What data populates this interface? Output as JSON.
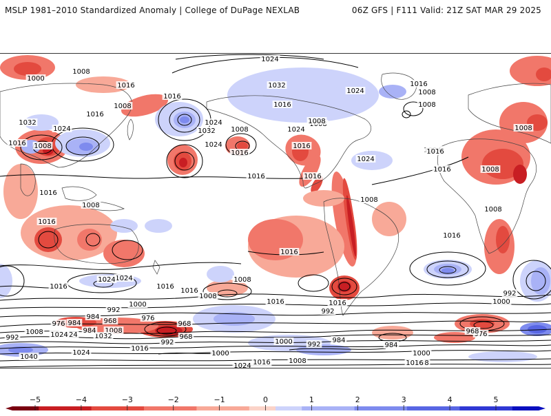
{
  "header": {
    "left_title": "MSLP 1981–2010 Standardized Anomaly | College of DuPage NEXLAB",
    "right_title": "06Z GFS | F111 Valid: 21Z SAT MAR 29 2025"
  },
  "colorbar": {
    "ticks": [
      "−5",
      "−4",
      "−3",
      "−2",
      "−1",
      "0",
      "1",
      "2",
      "3",
      "4",
      "5"
    ],
    "neg_colors": [
      "#7a0010",
      "#c81e23",
      "#e34a3f",
      "#f1776a",
      "#f8a998",
      "#fbd3c8"
    ],
    "pos_colors": [
      "#cdd3fb",
      "#a9b2f6",
      "#7e8bee",
      "#5866e3",
      "#3038d4",
      "#0a0fbf"
    ]
  },
  "isobar_labels": [
    "1016",
    "1024",
    "1008",
    "1016",
    "1000",
    "1016",
    "1008",
    "1016",
    "1032",
    "1024",
    "1016",
    "1008",
    "1016",
    "1032",
    "1024",
    "1008",
    "1016",
    "1024",
    "1008",
    "1016",
    "1024",
    "1016",
    "1024",
    "1016",
    "1008",
    "1016",
    "1032",
    "1024",
    "1016",
    "1008",
    "1008",
    "1024",
    "1016",
    "1008",
    "1008",
    "1016",
    "1008",
    "1008",
    "1016",
    "1008",
    "1016",
    "1016",
    "1016",
    "1024",
    "1024",
    "1016",
    "1016",
    "1008",
    "1016",
    "1008",
    "1016",
    "992",
    "1000",
    "992",
    "984",
    "984",
    "976",
    "968",
    "976",
    "968",
    "1008",
    "1032",
    "992",
    "968",
    "984",
    "1024",
    "1040",
    "992",
    "1024",
    "1016",
    "1000",
    "1000",
    "992",
    "984",
    "984",
    "1000",
    "1008",
    "1016",
    "1008",
    "1016",
    "1024",
    "1000",
    "992",
    "976",
    "968",
    "1008",
    "1024"
  ]
}
